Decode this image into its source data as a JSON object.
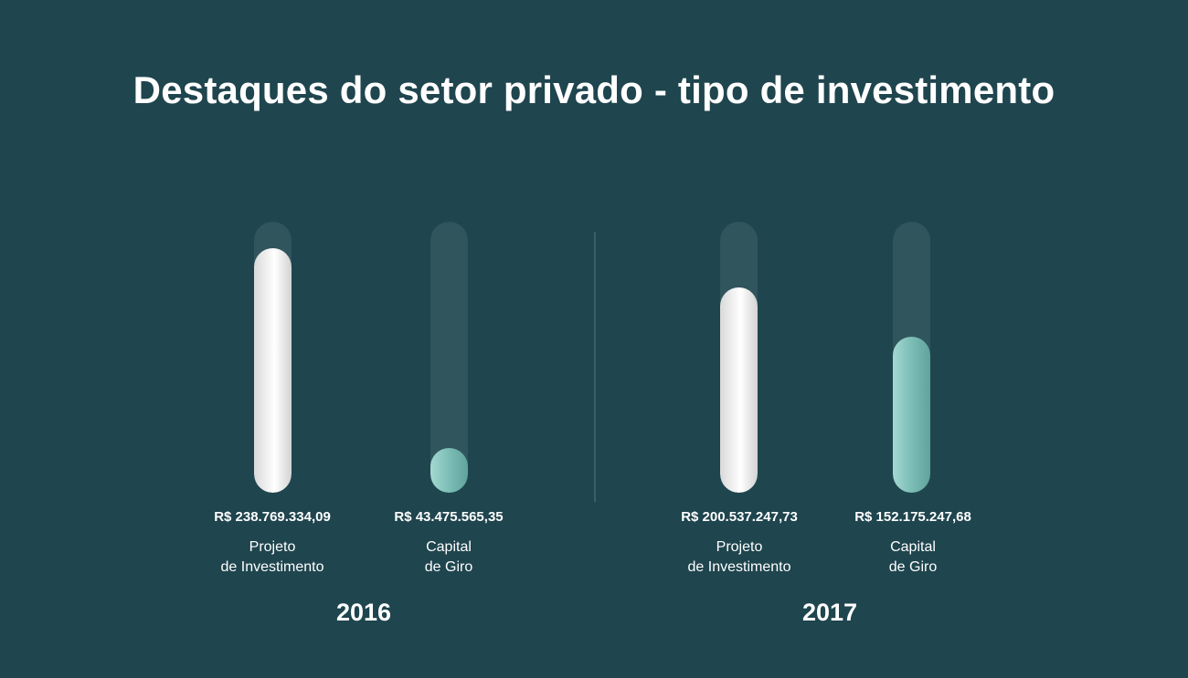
{
  "chart_data": {
    "type": "bar",
    "title": "Destaques do setor privado - tipo de investimento",
    "groups": [
      {
        "year": "2016",
        "bars": [
          {
            "value": 238769334.09,
            "value_label": "R$ 238.769.334,09",
            "label_line1": "Projeto",
            "label_line2": "de Investimento",
            "color": "#f2f2f2"
          },
          {
            "value": 43475565.35,
            "value_label": "R$ 43.475.565,35",
            "label_line1": "Capital",
            "label_line2": "de Giro",
            "color": "#8ccac3"
          }
        ]
      },
      {
        "year": "2017",
        "bars": [
          {
            "value": 200537247.73,
            "value_label": "R$ 200.537.247,73",
            "label_line1": "Projeto",
            "label_line2": "de Investimento",
            "color": "#f2f2f2"
          },
          {
            "value": 152175247.68,
            "value_label": "R$ 152.175.247,68",
            "label_line1": "Capital",
            "label_line2": "de Giro",
            "color": "#8ccac3"
          }
        ]
      }
    ],
    "ylim": [
      0,
      265000000
    ]
  },
  "colors": {
    "background": "#1f454e",
    "track": "#30555c",
    "project_bar": "#f2f2f2",
    "capital_bar": "#8ccac3"
  }
}
